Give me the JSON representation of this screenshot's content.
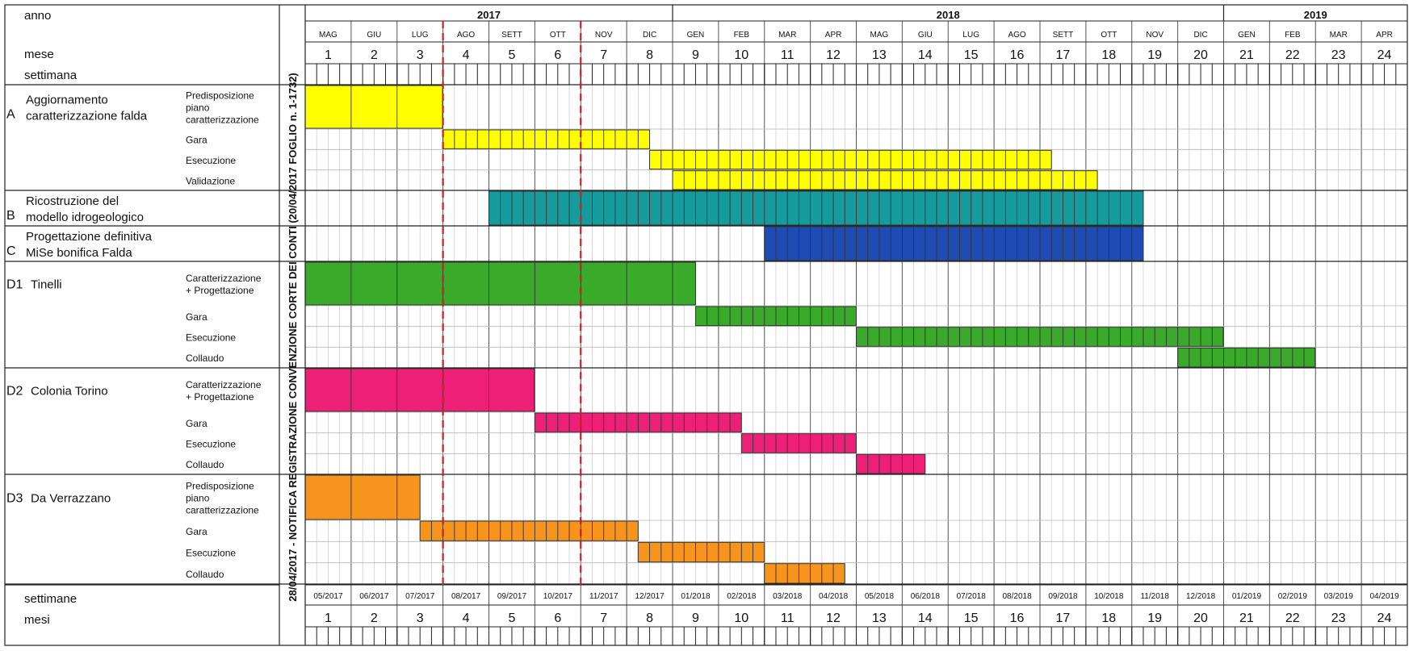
{
  "chart_data": {
    "type": "gantt",
    "header": {
      "year_label": "anno",
      "month_label": "mese",
      "week_label": "settimana",
      "years": [
        {
          "label": "2017",
          "months": 8
        },
        {
          "label": "2018",
          "months": 12
        },
        {
          "label": "2019",
          "months": 4
        }
      ],
      "months": [
        "MAG",
        "GIU",
        "LUG",
        "AGO",
        "SETT",
        "OTT",
        "NOV",
        "DIC",
        "GEN",
        "FEB",
        "MAR",
        "APR",
        "MAG",
        "GIU",
        "LUG",
        "AGO",
        "SETT",
        "OTT",
        "NOV",
        "DIC",
        "GEN",
        "FEB",
        "MAR",
        "APR"
      ],
      "month_numbers": [
        "1",
        "2",
        "3",
        "4",
        "5",
        "6",
        "7",
        "8",
        "9",
        "10",
        "11",
        "12",
        "13",
        "14",
        "15",
        "16",
        "17",
        "18",
        "19",
        "20",
        "21",
        "22",
        "23",
        "24"
      ],
      "weeks_per_month": 4
    },
    "footer": {
      "week_label": "settimane",
      "month_label": "mesi",
      "dates": [
        "05/2017",
        "06/2017",
        "07/2017",
        "08/2017",
        "09/2017",
        "10/2017",
        "11/2017",
        "12/2017",
        "01/2018",
        "02/2018",
        "03/2018",
        "04/2018",
        "05/2018",
        "06/2018",
        "07/2018",
        "08/2018",
        "09/2018",
        "10/2018",
        "11/2018",
        "12/2018",
        "01/2019",
        "02/2019",
        "03/2019",
        "04/2019"
      ],
      "month_numbers": [
        "1",
        "2",
        "3",
        "4",
        "5",
        "6",
        "7",
        "8",
        "9",
        "10",
        "11",
        "12",
        "13",
        "14",
        "15",
        "16",
        "17",
        "18",
        "19",
        "20",
        "21",
        "22",
        "23",
        "24"
      ]
    },
    "vertical_note": "28/04/2017 - NOTIFICA REGISTRAZIONE CONVENZIONE CORTE DEI CONTI (20/04/2017 FOGLIO n. 1-1732)",
    "milestone_markers": [
      {
        "after_month": 3,
        "color": "#cc1f1f"
      },
      {
        "after_month": 6,
        "color": "#cc1f1f"
      }
    ],
    "groups": [
      {
        "code": "A",
        "title": [
          "Aggiornamento",
          "caratterizzazione falda"
        ],
        "rows": [
          {
            "task": [
              "Predisposizione",
              "piano",
              "caratterizzazione"
            ],
            "start": 1,
            "end": 3.99,
            "color": "#ffff00",
            "hatched": false
          },
          {
            "task": [
              "Gara"
            ],
            "start": 4,
            "end": 8.5,
            "color": "#ffff00",
            "hatched": true
          },
          {
            "task": [
              "Esecuzione"
            ],
            "start": 8.5,
            "end": 17.25,
            "color": "#ffff00",
            "hatched": true
          },
          {
            "task": [
              "Validazione"
            ],
            "start": 9,
            "end": 18.25,
            "color": "#ffff00",
            "hatched": true
          }
        ]
      },
      {
        "code": "B",
        "title": [
          "Ricostruzione del",
          "modello idrogeologico"
        ],
        "rows": [
          {
            "task": [],
            "start": 5,
            "end": 19.25,
            "color": "#159b9b",
            "hatched": true
          }
        ]
      },
      {
        "code": "C",
        "title": [
          "Progettazione definitiva",
          "MiSe bonifica Falda"
        ],
        "rows": [
          {
            "task": [],
            "start": 11,
            "end": 19.25,
            "color": "#1e4bb4",
            "hatched": true
          }
        ]
      },
      {
        "code": "D1",
        "title": [
          "Tinelli"
        ],
        "rows": [
          {
            "task": [
              "Caratterizzazione",
              "+ Progettazione"
            ],
            "start": 1,
            "end": 9.5,
            "color": "#3aaa2a",
            "hatched": false
          },
          {
            "task": [
              "Gara"
            ],
            "start": 9.5,
            "end": 13,
            "color": "#3aaa2a",
            "hatched": true
          },
          {
            "task": [
              "Esecuzione"
            ],
            "start": 13,
            "end": 20.99,
            "color": "#3aaa2a",
            "hatched": true
          },
          {
            "task": [
              "Collaudo"
            ],
            "start": 20,
            "end": 22.99,
            "color": "#3aaa2a",
            "hatched": true
          }
        ]
      },
      {
        "code": "D2",
        "title": [
          "Colonia Torino"
        ],
        "rows": [
          {
            "task": [
              "Caratterizzazione",
              "+ Progettazione"
            ],
            "start": 1,
            "end": 5.99,
            "color": "#ee1f77",
            "hatched": false
          },
          {
            "task": [
              "Gara"
            ],
            "start": 6,
            "end": 10.5,
            "color": "#ee1f77",
            "hatched": true
          },
          {
            "task": [
              "Esecuzione"
            ],
            "start": 10.5,
            "end": 13,
            "color": "#ee1f77",
            "hatched": true
          },
          {
            "task": [
              "Collaudo"
            ],
            "start": 13,
            "end": 14.5,
            "color": "#ee1f77",
            "hatched": true
          }
        ]
      },
      {
        "code": "D3",
        "title": [
          "Da Verrazzano"
        ],
        "rows": [
          {
            "task": [
              "Predisposizione",
              "piano",
              "caratterizzazione"
            ],
            "start": 1,
            "end": 3.5,
            "color": "#f7941d",
            "hatched": false
          },
          {
            "task": [
              "Gara"
            ],
            "start": 3.5,
            "end": 8.25,
            "color": "#f7941d",
            "hatched": true
          },
          {
            "task": [
              "Esecuzione"
            ],
            "start": 8.25,
            "end": 11,
            "color": "#f7941d",
            "hatched": true
          },
          {
            "task": [
              "Collaudo"
            ],
            "start": 11,
            "end": 12.75,
            "color": "#f7941d",
            "hatched": true
          }
        ]
      }
    ]
  }
}
